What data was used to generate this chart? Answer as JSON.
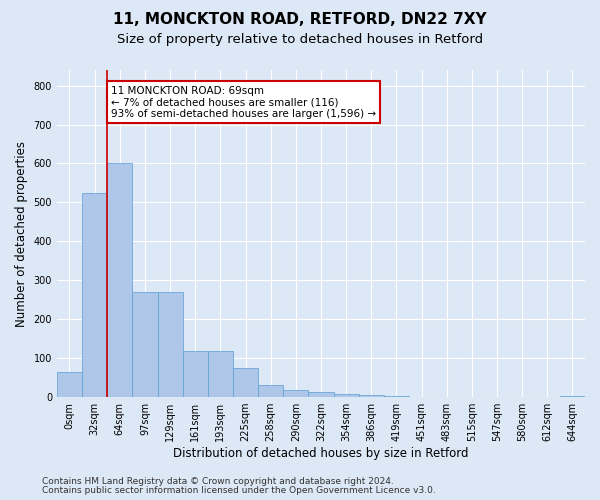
{
  "title1": "11, MONCKTON ROAD, RETFORD, DN22 7XY",
  "title2": "Size of property relative to detached houses in Retford",
  "xlabel": "Distribution of detached houses by size in Retford",
  "ylabel": "Number of detached properties",
  "footer1": "Contains HM Land Registry data © Crown copyright and database right 2024.",
  "footer2": "Contains public sector information licensed under the Open Government Licence v3.0.",
  "bar_labels": [
    "0sqm",
    "32sqm",
    "64sqm",
    "97sqm",
    "129sqm",
    "161sqm",
    "193sqm",
    "225sqm",
    "258sqm",
    "290sqm",
    "322sqm",
    "354sqm",
    "386sqm",
    "419sqm",
    "451sqm",
    "483sqm",
    "515sqm",
    "547sqm",
    "580sqm",
    "612sqm",
    "644sqm"
  ],
  "bar_values": [
    65,
    525,
    600,
    270,
    270,
    118,
    118,
    75,
    30,
    18,
    12,
    8,
    5,
    2,
    0,
    0,
    0,
    0,
    0,
    0,
    3
  ],
  "bar_color": "#aec6e8",
  "bar_edge_color": "#5a9fd4",
  "annotation_text": "11 MONCKTON ROAD: 69sqm\n← 7% of detached houses are smaller (116)\n93% of semi-detached houses are larger (1,596) →",
  "annotation_box_color": "#ffffff",
  "annotation_box_edge_color": "#cc0000",
  "vline_color": "#cc0000",
  "vline_x_bin": 2,
  "ylim": [
    0,
    840
  ],
  "yticks": [
    0,
    100,
    200,
    300,
    400,
    500,
    600,
    700,
    800
  ],
  "background_color": "#dce8f5",
  "plot_bg_color": "#dce8f5",
  "grid_color": "#ffffff",
  "title1_fontsize": 11,
  "title2_fontsize": 9.5,
  "xlabel_fontsize": 8.5,
  "ylabel_fontsize": 8.5,
  "tick_fontsize": 7,
  "footer_fontsize": 6.5
}
